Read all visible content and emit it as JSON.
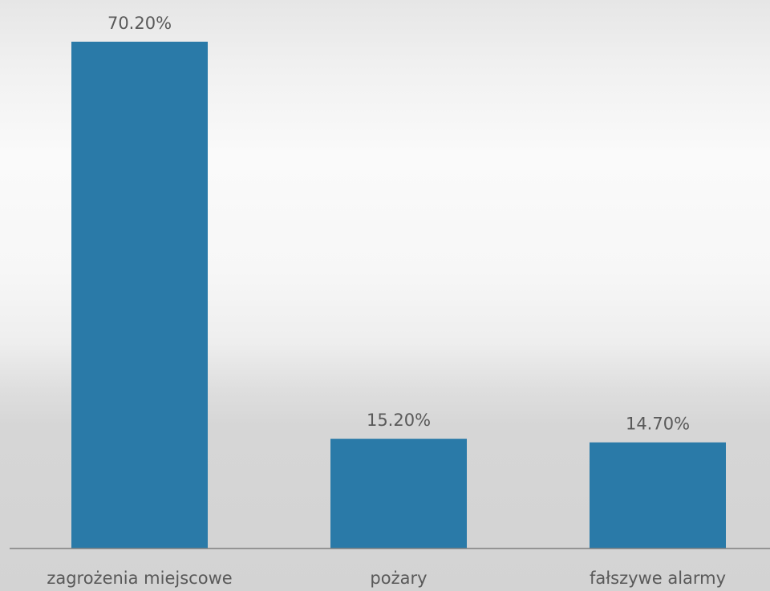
{
  "chart_data": {
    "type": "bar",
    "categories": [
      "zagrożenia miejscowe",
      "pożary",
      "fałszywe alarmy"
    ],
    "values": [
      70.2,
      15.2,
      14.7
    ],
    "data_labels": [
      "70.20%",
      "15.20%",
      "14.70%"
    ],
    "ylim": [
      0,
      80
    ],
    "grid": false,
    "legend": "none",
    "colors": {
      "bar": "#2a7aa8",
      "axis_line": "#7f7f7f",
      "text": "#595959"
    }
  }
}
